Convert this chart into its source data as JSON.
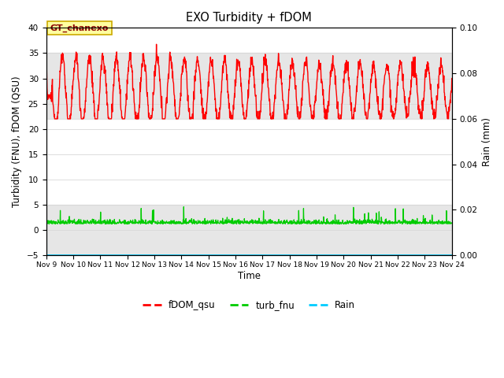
{
  "title": "EXO Turbidity + fDOM",
  "ylabel_left": "Turbidity (FNU), fDOM (QSU)",
  "ylabel_right": "Rain (mm)",
  "xlabel": "Time",
  "ylim_left": [
    -5,
    40
  ],
  "ylim_right": [
    0.0,
    0.1
  ],
  "xlim": [
    0,
    15
  ],
  "x_tick_labels": [
    "Nov 9",
    "Nov 10",
    "Nov 11",
    "Nov 12",
    "Nov 13",
    "Nov 14",
    "Nov 15",
    "Nov 16",
    "Nov 17",
    "Nov 18",
    "Nov 19",
    "Nov 20",
    "Nov 21",
    "Nov 22",
    "Nov 23",
    "Nov 24"
  ],
  "annotation_text": "GT_chanexo",
  "shaded_bands": [
    {
      "ymin": 22,
      "ymax": 35,
      "color": "#d3d3d3",
      "alpha": 0.55
    },
    {
      "ymin": -5,
      "ymax": 5,
      "color": "#d3d3d3",
      "alpha": 0.55
    }
  ],
  "legend_labels": [
    "fDOM_qsu",
    "turb_fnu",
    "Rain"
  ],
  "legend_colors": [
    "#ff0000",
    "#00cc00",
    "#00ccff"
  ],
  "background_color": "#ffffff",
  "grid_color": "#d8d8d8",
  "fdom_base": 28,
  "fdom_amp": 7,
  "fdom_period": 0.5,
  "turb_base": 1.5,
  "n_days": 15,
  "n_per_day": 96
}
